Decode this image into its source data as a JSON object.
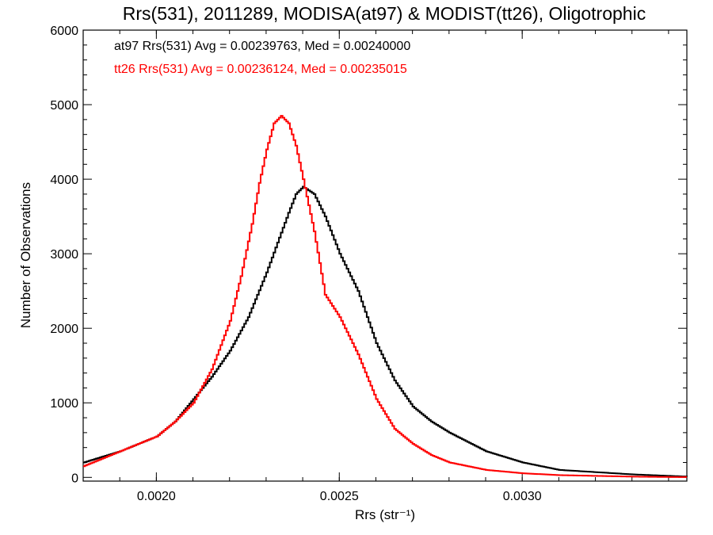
{
  "chart_data": {
    "type": "line",
    "step": true,
    "title": "Rrs(531), 2011289, MODISA(at97) & MODIST(tt26), Oligotrophic",
    "xlabel": "Rrs (str⁻¹)",
    "ylabel": "Number of Observations",
    "xlim": [
      0.0018,
      0.00345
    ],
    "ylim": [
      -50,
      6000
    ],
    "xticks": [
      0.002,
      0.0025,
      0.003
    ],
    "xtick_labels": [
      "0.0020",
      "0.0025",
      "0.0030"
    ],
    "yticks": [
      0,
      1000,
      2000,
      3000,
      4000,
      5000,
      6000
    ],
    "ytick_labels": [
      "0",
      "1000",
      "2000",
      "3000",
      "4000",
      "5000",
      "6000"
    ],
    "legend_placement": "top-left",
    "series": [
      {
        "legend": "at97 Rrs(531) Avg = 0.00239763, Med = 0.00240000",
        "color": "#000000",
        "x": [
          0.0018,
          0.0019,
          0.002,
          0.00205,
          0.0021,
          0.00215,
          0.0022,
          0.00225,
          0.0023,
          0.00233,
          0.00236,
          0.00238,
          0.0024,
          0.00243,
          0.00246,
          0.0025,
          0.00255,
          0.0026,
          0.00265,
          0.0027,
          0.00275,
          0.0028,
          0.0029,
          0.003,
          0.0031,
          0.0032,
          0.0033,
          0.0034,
          0.00345
        ],
        "y": [
          200,
          350,
          550,
          750,
          1050,
          1350,
          1700,
          2150,
          2750,
          3150,
          3550,
          3800,
          3900,
          3800,
          3500,
          3000,
          2500,
          1800,
          1300,
          950,
          750,
          600,
          350,
          200,
          100,
          70,
          40,
          20,
          10
        ]
      },
      {
        "legend": "tt26 Rrs(531) Avg = 0.00236124, Med = 0.00235015",
        "color": "#ff0000",
        "x": [
          0.0018,
          0.0019,
          0.002,
          0.00205,
          0.0021,
          0.00215,
          0.0022,
          0.00223,
          0.00226,
          0.00228,
          0.0023,
          0.00232,
          0.00234,
          0.00236,
          0.00238,
          0.0024,
          0.00243,
          0.00246,
          0.0025,
          0.00255,
          0.0026,
          0.00265,
          0.0027,
          0.00275,
          0.0028,
          0.0029,
          0.003,
          0.0031,
          0.0032,
          0.0033,
          0.0034,
          0.00345
        ],
        "y": [
          150,
          350,
          550,
          750,
          1000,
          1450,
          2100,
          2700,
          3400,
          3950,
          4400,
          4750,
          4850,
          4750,
          4450,
          4000,
          3300,
          2450,
          2150,
          1650,
          1050,
          650,
          450,
          300,
          200,
          100,
          55,
          30,
          20,
          10,
          5,
          5
        ]
      }
    ]
  }
}
